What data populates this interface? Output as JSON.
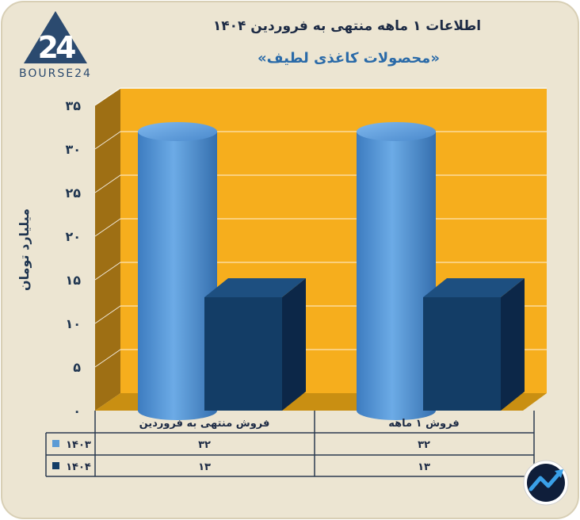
{
  "brand": {
    "logo_glyph": "24",
    "logo_text": "BOURSE24"
  },
  "chart_data": {
    "type": "bar",
    "title": "اطلاعات ۱ ماهه منتهی به فروردین ۱۴۰۴",
    "subtitle": "«محصولات کاغذی لطیف»",
    "ylabel": "میلیارد تومان",
    "ylim": [
      0,
      35
    ],
    "yticks": [
      "۰",
      "۵",
      "۱۰",
      "۱۵",
      "۲۰",
      "۲۵",
      "۳۰",
      "۳۵"
    ],
    "ytick_values": [
      0,
      5,
      10,
      15,
      20,
      25,
      30,
      35
    ],
    "categories": [
      "فروش منتهی به  فروردین",
      "فروش ۱  ماهه"
    ],
    "series": [
      {
        "name": "۱۴۰۳",
        "values": [
          32,
          32
        ],
        "labels": [
          "۳۲",
          "۳۲"
        ],
        "color": "#5b9bd5"
      },
      {
        "name": "۱۴۰۴",
        "values": [
          13,
          13
        ],
        "labels": [
          "۱۳",
          "۱۳"
        ],
        "color": "#133d66"
      }
    ],
    "plot_background": "#f6ae1d",
    "grid": true,
    "legend": "table-left"
  }
}
